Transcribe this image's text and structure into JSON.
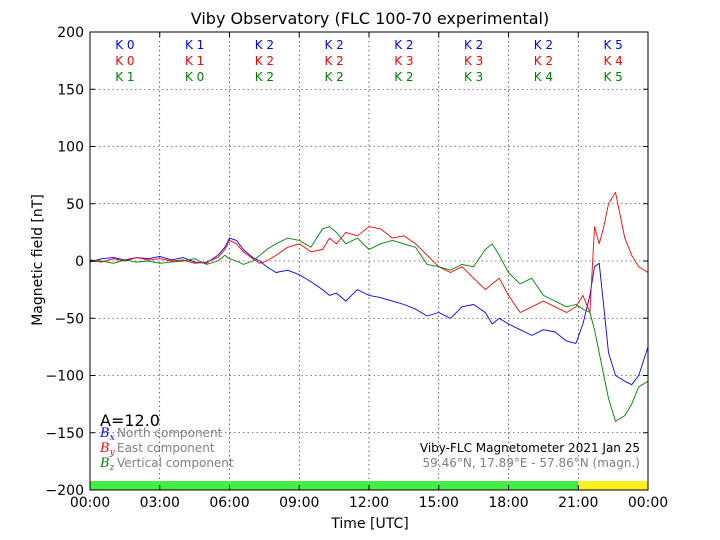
{
  "chart_data": {
    "type": "line",
    "title": "Viby Observatory (FLC 100-70 experimental)",
    "xlabel": "Time [UTC]",
    "ylabel": "Magnetic field [nT]",
    "xlim": [
      0,
      24
    ],
    "ylim": [
      -200,
      200
    ],
    "x_ticks": [
      0,
      3,
      6,
      9,
      12,
      15,
      18,
      21,
      24
    ],
    "x_tick_labels": [
      "00:00",
      "03:00",
      "06:00",
      "09:00",
      "12:00",
      "15:00",
      "18:00",
      "21:00",
      "00:00"
    ],
    "y_ticks": [
      -200,
      -150,
      -100,
      -50,
      0,
      50,
      100,
      150,
      200
    ],
    "y_tick_labels": [
      "−200",
      "−150",
      "−100",
      "−50",
      "0",
      "50",
      "100",
      "150",
      "200"
    ],
    "grid": true,
    "k_indices": {
      "blue": [
        "K 0",
        "K 1",
        "K 2",
        "K 2",
        "K 2",
        "K 2",
        "K 2",
        "K 5"
      ],
      "red": [
        "K 0",
        "K 1",
        "K 2",
        "K 2",
        "K 3",
        "K 3",
        "K 2",
        "K 4"
      ],
      "green": [
        "K 1",
        "K 0",
        "K 2",
        "K 2",
        "K 2",
        "K 3",
        "K 4",
        "K 5"
      ]
    },
    "a_index": "A=12.0",
    "legend": [
      {
        "symbol": "B",
        "sub": "x",
        "label": "North component",
        "color": "#0000ff"
      },
      {
        "symbol": "B",
        "sub": "y",
        "label": "East component",
        "color": "#ff0000"
      },
      {
        "symbol": "B",
        "sub": "z",
        "label": "Vertical component",
        "color": "#008000"
      }
    ],
    "info_line1": "Viby-FLC Magnetometer 2021 Jan 25",
    "info_line2": "59.46°N, 17.89°E - 57.86°N (magn.)",
    "status_bar": [
      {
        "from": 0,
        "to": 21,
        "color": "#44ee44"
      },
      {
        "from": 21,
        "to": 24,
        "color": "#ffee22"
      }
    ],
    "series": [
      {
        "name": "North component",
        "color": "#0000ff",
        "x": [
          0,
          0.5,
          1,
          1.5,
          2,
          2.5,
          3,
          3.5,
          4,
          4.5,
          5,
          5.5,
          5.8,
          6,
          6.3,
          6.6,
          7,
          7.3,
          7.6,
          8,
          8.5,
          9,
          9.5,
          10,
          10.3,
          10.6,
          11,
          11.5,
          12,
          12.5,
          13,
          13.5,
          14,
          14.5,
          15,
          15.5,
          16,
          16.5,
          17,
          17.3,
          17.6,
          18,
          18.5,
          19,
          19.5,
          20,
          20.5,
          20.9,
          21.2,
          21.5,
          21.7,
          21.9,
          22.1,
          22.3,
          22.6,
          23,
          23.3,
          23.6,
          24
        ],
        "y": [
          -1,
          2,
          3,
          1,
          3,
          2,
          4,
          1,
          3,
          -1,
          -2,
          5,
          12,
          20,
          18,
          10,
          3,
          0,
          -5,
          -10,
          -8,
          -12,
          -18,
          -25,
          -30,
          -28,
          -35,
          -25,
          -30,
          -32,
          -35,
          -38,
          -42,
          -48,
          -45,
          -50,
          -40,
          -38,
          -45,
          -55,
          -50,
          -55,
          -60,
          -65,
          -60,
          -62,
          -70,
          -72,
          -55,
          -30,
          -5,
          -2,
          -40,
          -80,
          -100,
          -105,
          -108,
          -100,
          -75
        ]
      },
      {
        "name": "East component",
        "color": "#ff0000",
        "x": [
          0,
          0.5,
          1,
          1.5,
          2,
          2.5,
          3,
          3.5,
          4,
          4.5,
          5,
          5.5,
          5.8,
          6,
          6.3,
          6.6,
          7,
          7.3,
          7.6,
          8,
          8.5,
          9,
          9.5,
          10,
          10.3,
          10.6,
          11,
          11.5,
          12,
          12.5,
          13,
          13.5,
          14,
          14.5,
          15,
          15.5,
          16,
          16.5,
          17,
          17.3,
          17.6,
          18,
          18.5,
          19,
          19.5,
          20,
          20.5,
          20.9,
          21.2,
          21.5,
          21.7,
          21.9,
          22.1,
          22.3,
          22.6,
          23,
          23.3,
          23.6,
          24
        ],
        "y": [
          0,
          -1,
          2,
          0,
          3,
          1,
          2,
          0,
          1,
          -2,
          -1,
          3,
          10,
          18,
          15,
          8,
          2,
          -2,
          0,
          5,
          12,
          15,
          8,
          10,
          20,
          15,
          25,
          22,
          30,
          28,
          20,
          22,
          15,
          5,
          -5,
          -10,
          -5,
          -15,
          -25,
          -20,
          -15,
          -30,
          -45,
          -40,
          -35,
          -40,
          -45,
          -40,
          -30,
          -45,
          30,
          15,
          30,
          50,
          60,
          20,
          5,
          -5,
          -10
        ]
      },
      {
        "name": "Vertical component",
        "color": "#008000",
        "x": [
          0,
          0.5,
          1,
          1.5,
          2,
          2.5,
          3,
          3.5,
          4,
          4.5,
          5,
          5.5,
          5.8,
          6,
          6.3,
          6.6,
          7,
          7.3,
          7.6,
          8,
          8.5,
          9,
          9.5,
          10,
          10.3,
          10.6,
          11,
          11.5,
          12,
          12.5,
          13,
          13.5,
          14,
          14.5,
          15,
          15.5,
          16,
          16.5,
          17,
          17.3,
          17.6,
          18,
          18.5,
          19,
          19.5,
          20,
          20.5,
          20.9,
          21.2,
          21.5,
          21.7,
          21.9,
          22.1,
          22.3,
          22.6,
          23,
          23.3,
          23.6,
          24
        ],
        "y": [
          1,
          0,
          -2,
          1,
          -1,
          0,
          -2,
          -1,
          0,
          2,
          -3,
          0,
          5,
          2,
          0,
          -3,
          0,
          5,
          10,
          15,
          20,
          18,
          12,
          28,
          30,
          25,
          15,
          20,
          10,
          15,
          18,
          15,
          12,
          -3,
          -5,
          -8,
          -3,
          -5,
          10,
          15,
          5,
          -10,
          -20,
          -15,
          -30,
          -35,
          -40,
          -38,
          -42,
          -45,
          -60,
          -80,
          -100,
          -120,
          -140,
          -135,
          -125,
          -110,
          -105
        ]
      }
    ]
  }
}
